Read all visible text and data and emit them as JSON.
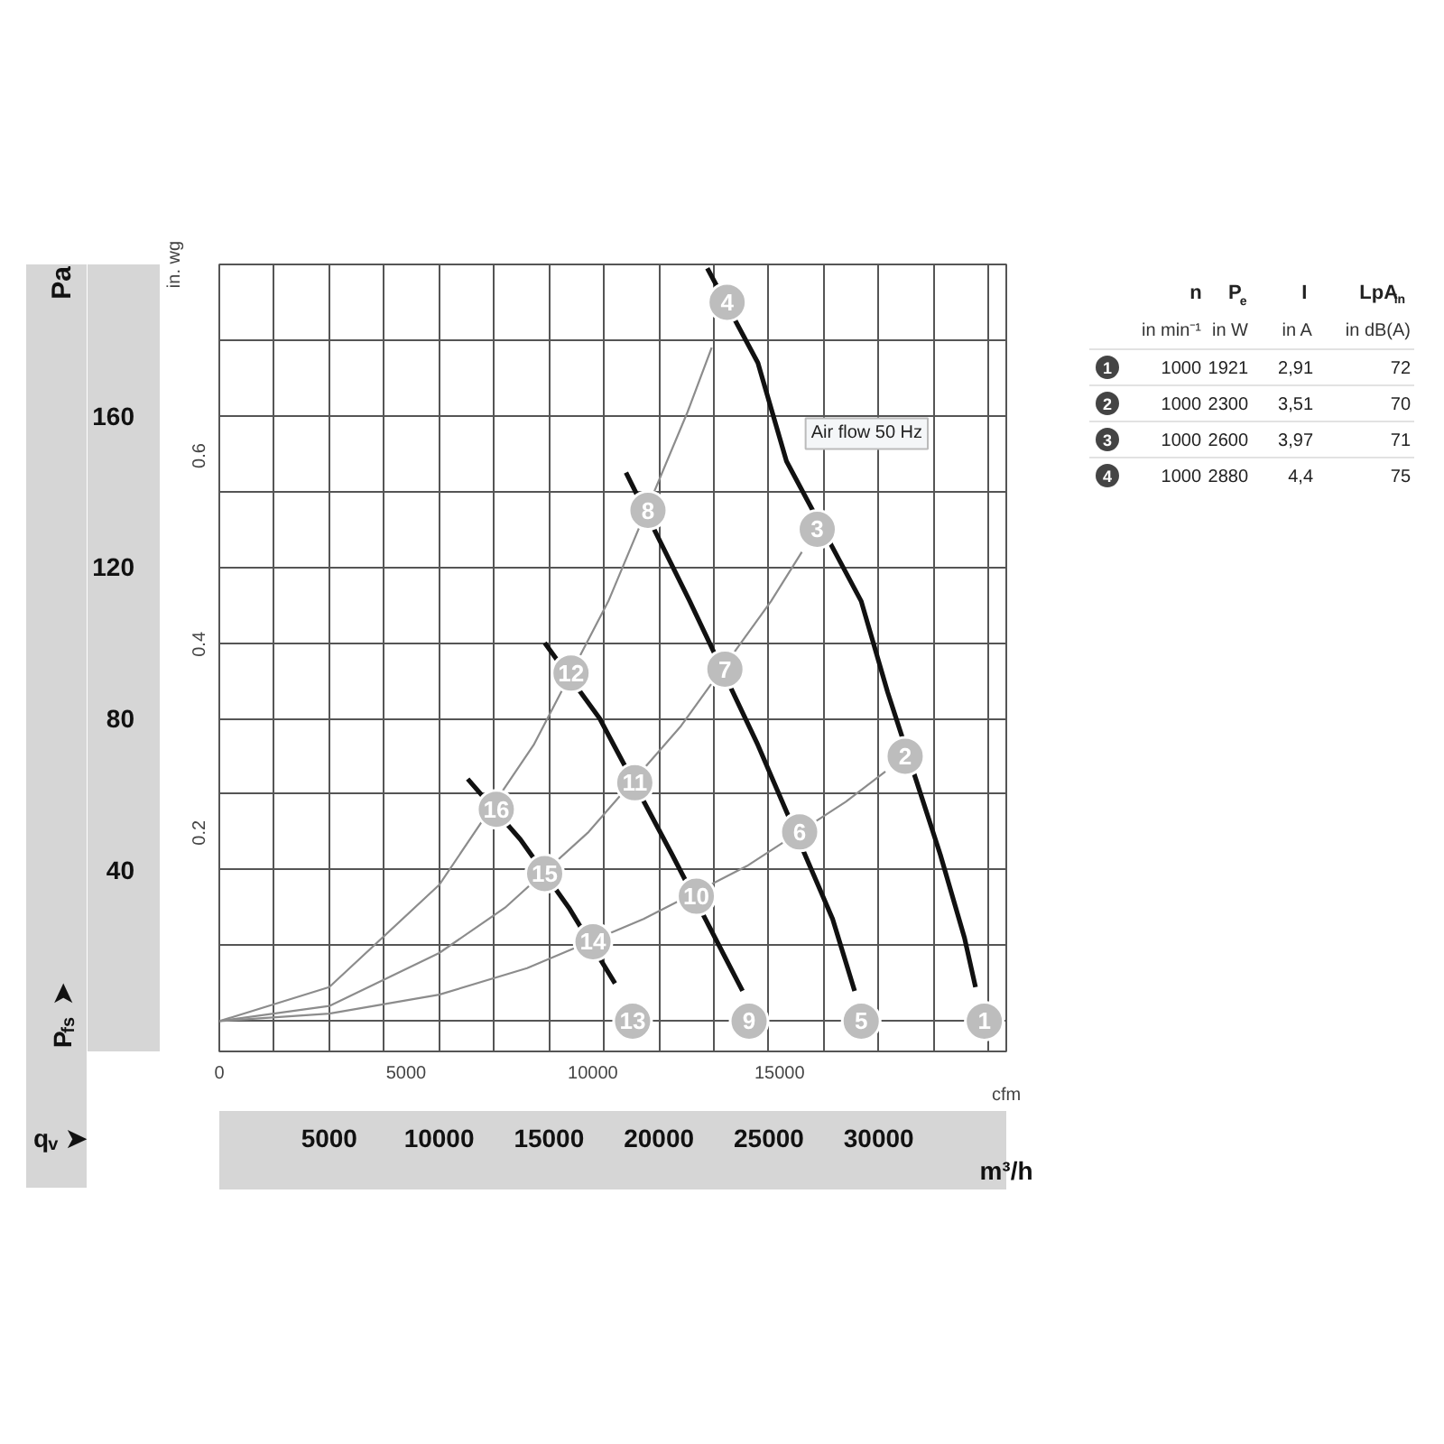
{
  "chart_data": [
    {
      "type": "line",
      "xlabel": "m³/h",
      "ylabel": "Pa",
      "y2label": "in. wg",
      "x2label": "cfm",
      "xlim": [
        0,
        35800
      ],
      "ylim": [
        -8,
        200
      ],
      "x2lim": [
        0,
        21071
      ],
      "y2lim": [
        -0.032,
        0.803
      ],
      "xticks": [
        {
          "value": 0,
          "label": null
        },
        {
          "value": 2500,
          "label": null
        },
        5000,
        {
          "value": 7500,
          "label": null
        },
        10000,
        {
          "value": 12500,
          "label": null
        },
        15000,
        {
          "value": 17500,
          "label": null
        },
        20000,
        {
          "value": 22500,
          "label": null
        },
        25000,
        {
          "value": 27500,
          "label": null
        },
        30000,
        {
          "value": 32500,
          "label": null
        },
        {
          "value": 35000,
          "label": null
        }
      ],
      "yticks": [
        {
          "value": 0,
          "label": null
        },
        {
          "value": 20,
          "label": null
        },
        40,
        {
          "value": 60,
          "label": null
        },
        80,
        {
          "value": 100,
          "label": null
        },
        120,
        {
          "value": 140,
          "label": null
        },
        160,
        {
          "value": 180,
          "label": null
        }
      ],
      "x2ticks": [
        0,
        5000,
        10000,
        15000
      ],
      "y2ticks": [
        0.2,
        0.4,
        0.6
      ],
      "grid": true,
      "series": [
        {
          "color": "#111111",
          "x": [
            22200,
            24500,
            25800,
            29200,
            30400,
            32800,
            33900,
            34400
          ],
          "values": [
            199,
            174,
            148,
            111,
            87,
            44,
            22,
            9
          ]
        },
        {
          "color": "#111111",
          "x": [
            18500,
            21400,
            24500,
            27900,
            28900
          ],
          "values": [
            145,
            111,
            73,
            27,
            8
          ]
        },
        {
          "color": "#111111",
          "x": [
            14800,
            17300,
            20600,
            23000,
            23800
          ],
          "values": [
            100,
            80,
            44,
            17,
            8
          ]
        },
        {
          "color": "#111111",
          "x": [
            11300,
            13700,
            15900,
            18000
          ],
          "values": [
            64,
            48,
            30,
            10
          ]
        },
        {
          "color": "#8c8c8c",
          "x": [
            0,
            5000,
            10000,
            14300,
            17700,
            21300,
            22400
          ],
          "values": [
            0,
            9,
            36,
            73,
            111,
            161,
            178
          ]
        },
        {
          "color": "#8c8c8c",
          "x": [
            0,
            5000,
            10000,
            13000,
            16800,
            21000,
            25100,
            26500
          ],
          "values": [
            0,
            4,
            18,
            30,
            50,
            78,
            111,
            124
          ]
        },
        {
          "color": "#8c8c8c",
          "x": [
            0,
            5000,
            10000,
            14000,
            19300,
            24000,
            28500,
            30300
          ],
          "values": [
            0,
            2,
            7,
            14,
            27,
            41,
            58,
            66
          ]
        }
      ],
      "annotations": [
        "P$_{fs}$ ➤",
        "q$_{v}$ ➤",
        "Air flow 50 Hz",
        {
          "text": "1",
          "x": 34800,
          "y": 0
        },
        {
          "text": "2",
          "x": 31200,
          "y": 70
        },
        {
          "text": "3",
          "x": 27200,
          "y": 130
        },
        {
          "text": "4",
          "x": 23100,
          "y": 190
        },
        {
          "text": "5",
          "x": 29200,
          "y": 0
        },
        {
          "text": "6",
          "x": 26400,
          "y": 50
        },
        {
          "text": "7",
          "x": 23000,
          "y": 93
        },
        {
          "text": "8",
          "x": 19500,
          "y": 135
        },
        {
          "text": "9",
          "x": 24100,
          "y": 0
        },
        {
          "text": "10",
          "x": 21700,
          "y": 33
        },
        {
          "text": "11",
          "x": 18900,
          "y": 63
        },
        {
          "text": "12",
          "x": 16000,
          "y": 92
        },
        {
          "text": "13",
          "x": 18800,
          "y": 0
        },
        {
          "text": "14",
          "x": 17000,
          "y": 21
        },
        {
          "text": "15",
          "x": 14800,
          "y": 39
        },
        {
          "text": "16",
          "x": 12600,
          "y": 56
        }
      ]
    },
    {
      "type": "heatmap",
      "categories": [
        "n",
        "P$_{e}$",
        "I",
        "LpA$_{in}$"
      ],
      "annotations": [
        "in min⁻¹",
        "in W",
        "in A",
        "in dB(A)"
      ],
      "y_categories": [
        "1",
        "2",
        "3",
        "4"
      ],
      "cells": [
        [
          null,
          null,
          null,
          null
        ],
        [
          null,
          null,
          null,
          null
        ],
        [
          null,
          null,
          null,
          null
        ],
        [
          null,
          null,
          null,
          null
        ]
      ],
      "cell_labels": [
        [
          "1000",
          "1921",
          "2,91",
          "72"
        ],
        [
          "1000",
          "2300",
          "3,51",
          "70"
        ],
        [
          "1000",
          "2600",
          "3,97",
          "71"
        ],
        [
          "1000",
          "2880",
          "4,4",
          "75"
        ]
      ]
    }
  ]
}
